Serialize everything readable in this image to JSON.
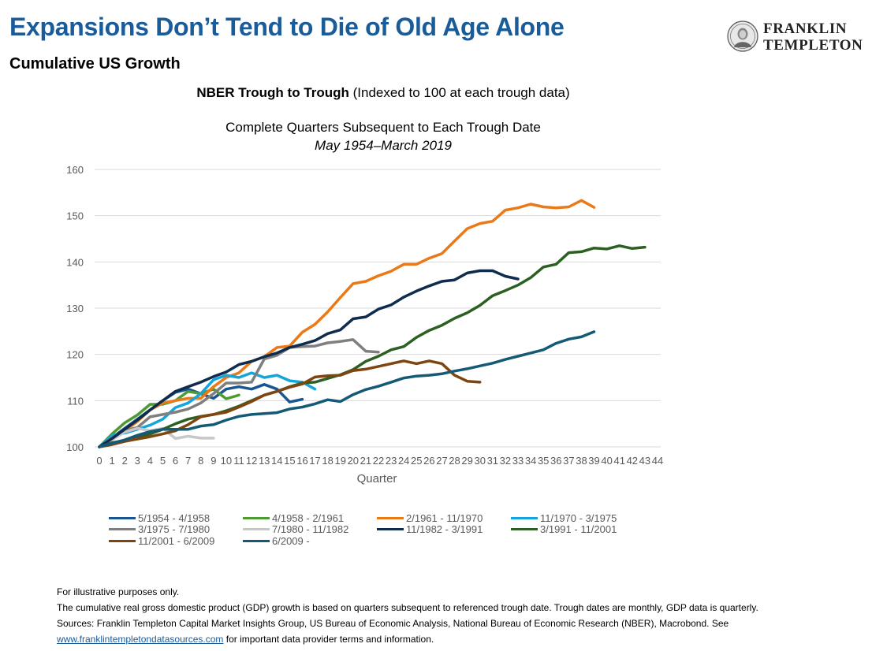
{
  "header": {
    "title": "Expansions Don’t Tend to Die of Old Age Alone",
    "subtitle": "Cumulative US Growth",
    "logo_line1": "FRANKLIN",
    "logo_line2": "TEMPLETON"
  },
  "chart_heading": {
    "bold": "NBER Trough to Trough",
    "rest": " (Indexed to 100 at each trough data)",
    "line2": "Complete Quarters Subsequent to Each Trough Date",
    "line3": "May 1954–March 2019"
  },
  "colors": {
    "gridline": "#d9d9d9",
    "title": "#1a5b9a"
  },
  "chart_data": {
    "type": "line",
    "xlabel": "Quarter",
    "ylabel": "",
    "xlim": [
      0,
      44
    ],
    "ylim": [
      100,
      160
    ],
    "x_ticks": [
      "0",
      "1",
      "2",
      "3",
      "4",
      "5",
      "6",
      "7",
      "8",
      "9",
      "10",
      "11",
      "12",
      "13",
      "14",
      "15",
      "16",
      "17",
      "18",
      "19",
      "20",
      "21",
      "22",
      "23",
      "24",
      "25",
      "26",
      "27",
      "28",
      "29",
      "30",
      "31",
      "32",
      "33",
      "34",
      "35",
      "36",
      "37",
      "38",
      "39",
      "40",
      "41",
      "42",
      "43",
      "44"
    ],
    "y_ticks": [
      "100",
      "110",
      "120",
      "130",
      "140",
      "150",
      "160"
    ],
    "grid": true,
    "legend_position": "bottom",
    "series": [
      {
        "name": "5/1954 - 4/1958",
        "color": "#1a5590",
        "values": [
          100,
          102,
          104,
          106,
          108,
          110,
          111.8,
          112.5,
          111.5,
          110.5,
          112.5,
          113,
          112.5,
          113.5,
          112.5,
          109.7,
          110.3
        ]
      },
      {
        "name": "4/1958 - 2/1961",
        "color": "#4e9a33",
        "values": [
          100,
          102.8,
          105.2,
          106.9,
          109.2,
          109.2,
          110,
          112,
          111.5,
          112.5,
          110.4,
          111.2
        ]
      },
      {
        "name": "2/1961 - 11/1970",
        "color": "#ea7a18",
        "values": [
          100,
          101.8,
          103.5,
          105.5,
          108,
          109.5,
          110,
          110.5,
          110.5,
          113,
          115,
          116,
          118.5,
          119.5,
          121.5,
          121.8,
          124.8,
          126.5,
          129.2,
          132.3,
          135.3,
          135.8,
          137,
          138,
          139.5,
          139.5,
          140.8,
          141.8,
          144.5,
          147.2,
          148.3,
          148.8,
          151.2,
          151.7,
          152.5,
          151.9,
          151.7,
          151.9,
          153.3,
          151.8
        ]
      },
      {
        "name": "11/1970 - 3/1975",
        "color": "#16a4dc",
        "values": [
          100,
          102.5,
          103,
          103.8,
          104.7,
          106,
          108.5,
          109.5,
          111.5,
          114.5,
          115.5,
          115,
          116,
          115,
          115.5,
          114.3,
          114,
          112.5
        ]
      },
      {
        "name": "3/1975 - 7/1980",
        "color": "#7f7f7f",
        "values": [
          100,
          102,
          103.5,
          104.2,
          106.5,
          107,
          107.5,
          108.2,
          109.5,
          111.5,
          113.8,
          113.8,
          114,
          119,
          119.8,
          121.5,
          121.7,
          121.8,
          122.5,
          122.8,
          123.2,
          120.7,
          120.5
        ]
      },
      {
        "name": "7/1980 - 11/1982",
        "color": "#c8c8c8",
        "values": [
          100,
          101.5,
          103.2,
          104,
          103.5,
          104,
          101.8,
          102.3,
          101.9,
          101.9
        ]
      },
      {
        "name": "11/1982 - 3/1991",
        "color": "#0f2c4e",
        "values": [
          100,
          101.8,
          103.8,
          105.8,
          108,
          110,
          112,
          113,
          114,
          115.2,
          116.2,
          117.8,
          118.5,
          119.5,
          120.3,
          121.5,
          122.2,
          123,
          124.5,
          125.3,
          127.7,
          128.1,
          129.8,
          130.7,
          132.4,
          133.7,
          134.8,
          135.8,
          136.1,
          137.6,
          138.1,
          138.1,
          136.9,
          136.3
        ]
      },
      {
        "name": "3/1991 - 11/2001",
        "color": "#2c5f22",
        "values": [
          100,
          100.9,
          101.4,
          102,
          102.8,
          103.8,
          105,
          106,
          106.6,
          107,
          107.8,
          108.8,
          110,
          111.2,
          112,
          113,
          113.8,
          114,
          114.8,
          115.6,
          116.7,
          118.5,
          119.6,
          121,
          121.7,
          123.7,
          125.2,
          126.3,
          127.8,
          129,
          130.6,
          132.7,
          133.8,
          135,
          136.6,
          138.9,
          139.5,
          142,
          142.2,
          143,
          142.8,
          143.5,
          142.9,
          143.2
        ]
      },
      {
        "name": "11/2001 - 6/2009",
        "color": "#7f4511",
        "values": [
          100,
          100.5,
          101.2,
          101.7,
          102.2,
          102.8,
          103.5,
          104.8,
          106.5,
          107,
          107.5,
          108.6,
          109.8,
          111.2,
          112,
          112.9,
          113.6,
          115.1,
          115.4,
          115.5,
          116.5,
          116.8,
          117.4,
          118,
          118.6,
          118,
          118.6,
          118,
          115.5,
          114.2,
          114
        ]
      },
      {
        "name": "6/2009 -",
        "color": "#145a76",
        "values": [
          100,
          100.8,
          101.5,
          102.5,
          103.3,
          103.8,
          103.8,
          103.8,
          104.5,
          104.8,
          105.8,
          106.6,
          107,
          107.2,
          107.4,
          108.2,
          108.6,
          109.3,
          110.2,
          109.8,
          111.3,
          112.4,
          113.1,
          114,
          114.9,
          115.3,
          115.5,
          115.8,
          116.4,
          116.9,
          117.5,
          118.1,
          118.9,
          119.6,
          120.3,
          121,
          122.4,
          123.3,
          123.8,
          124.9
        ]
      }
    ]
  },
  "footnotes": {
    "line1": "For illustrative purposes only.",
    "line2": "The cumulative real gross domestic product (GDP) growth is based on quarters subsequent to referenced trough date. Trough dates are monthly, GDP data is quarterly.",
    "line3": "Sources: Franklin Templeton Capital Market Insights Group, US Bureau of Economic Analysis, National Bureau of Economic Research (NBER), Macrobond. See",
    "link_text": "www.franklintempletondatasources.com",
    "line4_rest": " for important data provider terms and information."
  }
}
